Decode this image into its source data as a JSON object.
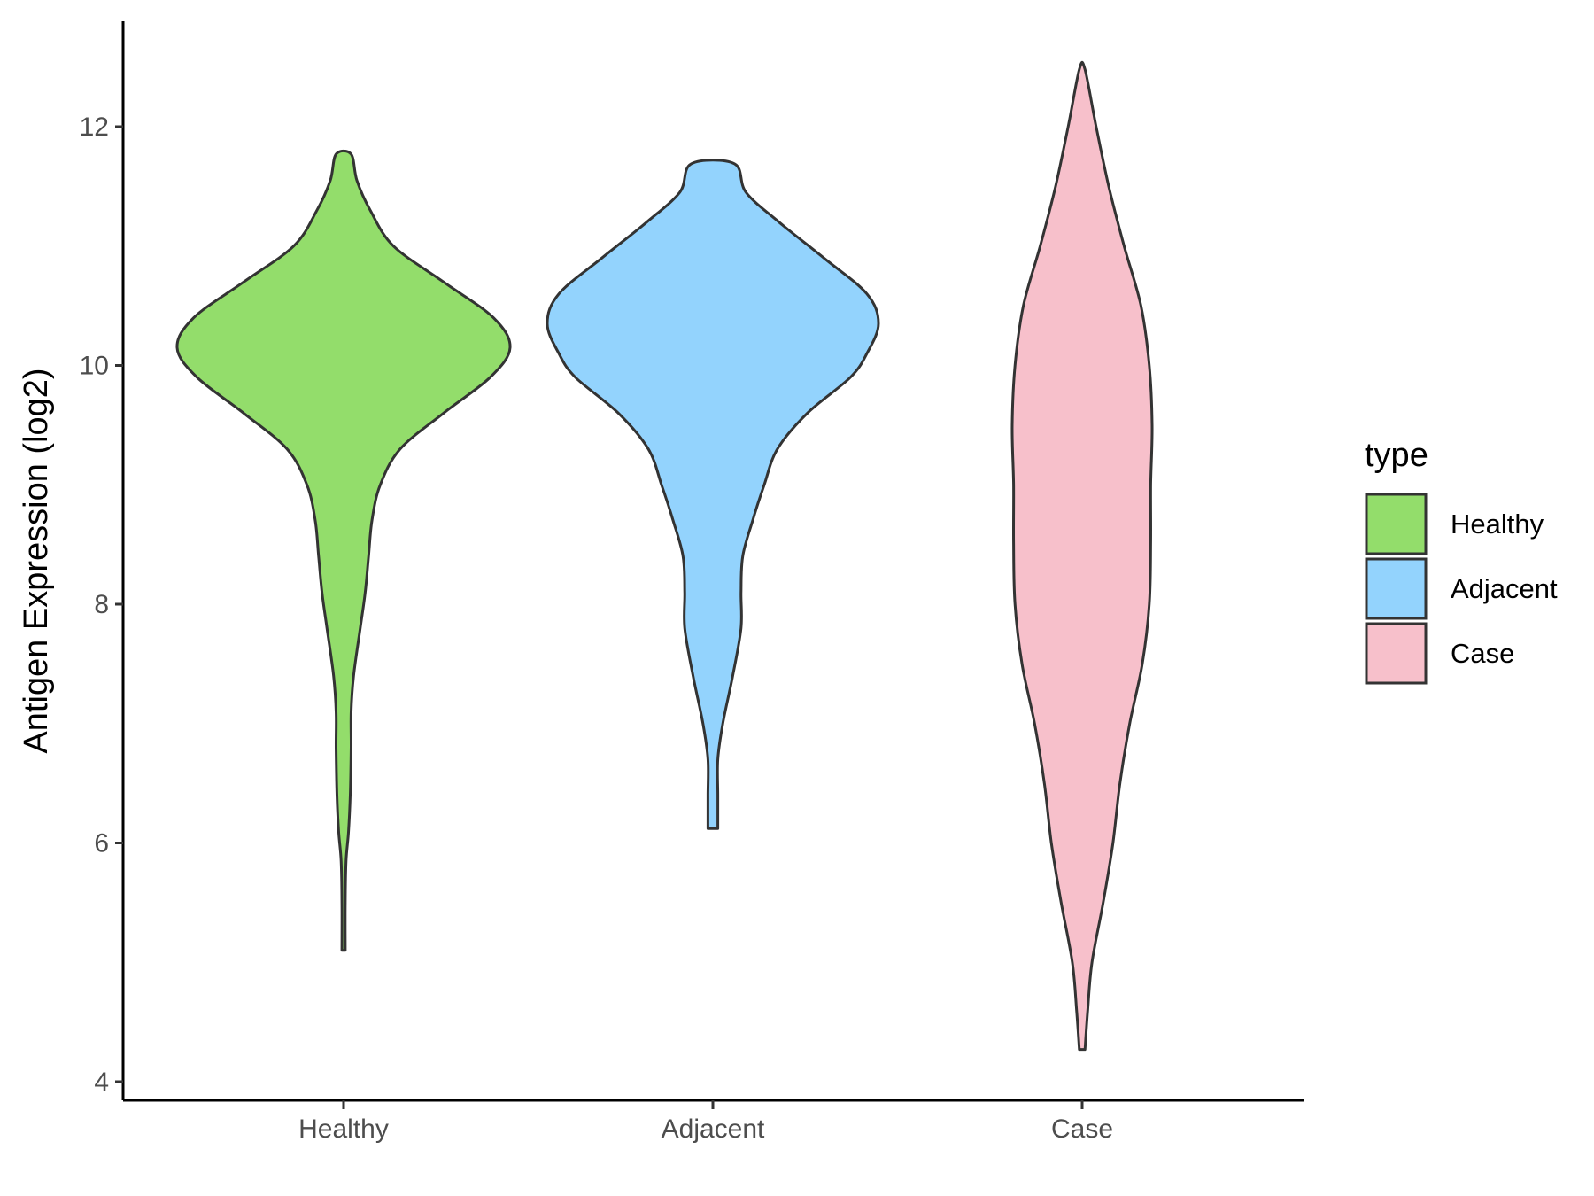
{
  "chart_data": {
    "type": "violin",
    "ylabel": "Antigen Expression (log2)",
    "xlabel": "",
    "categories": [
      "Healthy",
      "Adjacent",
      "Case"
    ],
    "ylim": [
      3.9,
      12.9
    ],
    "yticks": [
      4,
      6,
      8,
      10,
      12
    ],
    "grid": false,
    "legend": {
      "title": "type",
      "position": "right",
      "entries": [
        {
          "label": "Healthy",
          "color": "#93dd6b"
        },
        {
          "label": "Adjacent",
          "color": "#93d3fd"
        },
        {
          "label": "Case",
          "color": "#f7c0cb"
        }
      ]
    },
    "series": [
      {
        "category": "Healthy",
        "color": "#93dd6b",
        "min": 5.1,
        "max": 11.77,
        "density_profile": [
          [
            5.1,
            0.01
          ],
          [
            5.5,
            0.01
          ],
          [
            5.85,
            0.015
          ],
          [
            6.1,
            0.03
          ],
          [
            6.4,
            0.04
          ],
          [
            6.8,
            0.045
          ],
          [
            7.1,
            0.045
          ],
          [
            7.4,
            0.06
          ],
          [
            7.8,
            0.1
          ],
          [
            8.1,
            0.13
          ],
          [
            8.4,
            0.15
          ],
          [
            8.7,
            0.17
          ],
          [
            9.0,
            0.22
          ],
          [
            9.3,
            0.34
          ],
          [
            9.6,
            0.6
          ],
          [
            9.9,
            0.88
          ],
          [
            10.15,
            1.0
          ],
          [
            10.4,
            0.9
          ],
          [
            10.7,
            0.6
          ],
          [
            11.0,
            0.3
          ],
          [
            11.3,
            0.16
          ],
          [
            11.55,
            0.08
          ],
          [
            11.77,
            0.045
          ]
        ]
      },
      {
        "category": "Adjacent",
        "color": "#93d3fd",
        "min": 6.12,
        "max": 11.69,
        "density_profile": [
          [
            6.12,
            0.03
          ],
          [
            6.4,
            0.03
          ],
          [
            6.7,
            0.03
          ],
          [
            7.0,
            0.06
          ],
          [
            7.4,
            0.12
          ],
          [
            7.8,
            0.17
          ],
          [
            8.1,
            0.17
          ],
          [
            8.4,
            0.18
          ],
          [
            8.7,
            0.24
          ],
          [
            9.0,
            0.31
          ],
          [
            9.3,
            0.39
          ],
          [
            9.6,
            0.57
          ],
          [
            9.9,
            0.83
          ],
          [
            10.1,
            0.93
          ],
          [
            10.35,
            1.0
          ],
          [
            10.6,
            0.93
          ],
          [
            10.9,
            0.67
          ],
          [
            11.2,
            0.4
          ],
          [
            11.45,
            0.2
          ],
          [
            11.69,
            0.13
          ]
        ]
      },
      {
        "category": "Case",
        "color": "#f7c0cb",
        "min": 4.27,
        "max": 12.48,
        "density_profile": [
          [
            4.27,
            0.02
          ],
          [
            4.6,
            0.04
          ],
          [
            5.0,
            0.07
          ],
          [
            5.5,
            0.15
          ],
          [
            6.0,
            0.22
          ],
          [
            6.5,
            0.27
          ],
          [
            7.0,
            0.34
          ],
          [
            7.5,
            0.43
          ],
          [
            8.0,
            0.48
          ],
          [
            8.5,
            0.49
          ],
          [
            9.0,
            0.49
          ],
          [
            9.5,
            0.5
          ],
          [
            10.0,
            0.48
          ],
          [
            10.5,
            0.42
          ],
          [
            11.0,
            0.3
          ],
          [
            11.5,
            0.19
          ],
          [
            12.0,
            0.1
          ],
          [
            12.48,
            0.02
          ]
        ]
      }
    ]
  }
}
